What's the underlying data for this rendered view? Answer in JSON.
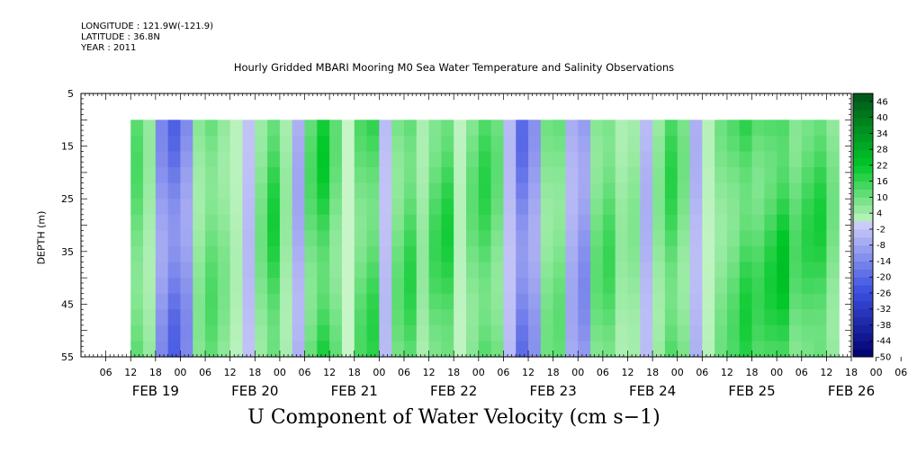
{
  "header": {
    "longitude": "LONGITUDE : 121.9W(-121.9)",
    "latitude": "LATITUDE : 36.8N",
    "year": "YEAR : 2011"
  },
  "chart_data": {
    "type": "heatmap",
    "title": "Hourly Gridded MBARI Mooring M0 Sea Water Temperature and Salinity Observations",
    "variable_label": "U Component of Water Velocity (cm s−1)",
    "ylabel": "DEPTH (m)",
    "ylim": [
      5,
      55
    ],
    "y_inverted": true,
    "y_ticks": [
      5,
      15,
      25,
      35,
      45,
      55
    ],
    "data_depth_range": [
      10,
      55
    ],
    "x_hour_ticks": [
      "06",
      "12",
      "18",
      "00",
      "06",
      "12",
      "18",
      "00",
      "06",
      "12",
      "18",
      "00",
      "06",
      "12",
      "18",
      "00",
      "06",
      "12",
      "18",
      "00",
      "06",
      "12",
      "18",
      "00",
      "06",
      "12",
      "18",
      "00",
      "06",
      "12",
      "18",
      "00",
      "06",
      "12",
      "18",
      "00"
    ],
    "x_date_labels": [
      "FEB 19",
      "FEB 20",
      "FEB 21",
      "FEB 22",
      "FEB 23",
      "FEB 24",
      "FEB 25",
      "FEB 26"
    ],
    "time_range_hours": [
      -18,
      168
    ],
    "data_time_range_hours": [
      -6,
      162
    ],
    "colorbar": {
      "min": -50,
      "max": 49,
      "step": 3,
      "tick_labels": [
        "46",
        "40",
        "34",
        "28",
        "22",
        "16",
        "10",
        "4",
        "-2",
        "-8",
        "-14",
        "-20",
        "-26",
        "-32",
        "-38",
        "-44",
        "-50"
      ],
      "negative_color": "#3a48d8",
      "positive_color": "#0a8a1e"
    },
    "column_values": [
      {
        "t": -6,
        "v": 14
      },
      {
        "t": -3,
        "v": 6
      },
      {
        "t": 0,
        "v": -14
      },
      {
        "t": 3,
        "v": -22
      },
      {
        "t": 6,
        "v": -14
      },
      {
        "t": 9,
        "v": 8
      },
      {
        "t": 12,
        "v": 14
      },
      {
        "t": 15,
        "v": 9
      },
      {
        "t": 18,
        "v": 3
      },
      {
        "t": 21,
        "v": -4
      },
      {
        "t": 24,
        "v": 10
      },
      {
        "t": 27,
        "v": 20
      },
      {
        "t": 30,
        "v": 6
      },
      {
        "t": 33,
        "v": -8
      },
      {
        "t": 36,
        "v": 14
      },
      {
        "t": 39,
        "v": 22
      },
      {
        "t": 42,
        "v": 12
      },
      {
        "t": 45,
        "v": 0
      },
      {
        "t": 48,
        "v": 14
      },
      {
        "t": 51,
        "v": 18
      },
      {
        "t": 54,
        "v": -4
      },
      {
        "t": 57,
        "v": 12
      },
      {
        "t": 60,
        "v": 18
      },
      {
        "t": 63,
        "v": 6
      },
      {
        "t": 66,
        "v": 16
      },
      {
        "t": 69,
        "v": 20
      },
      {
        "t": 72,
        "v": 2
      },
      {
        "t": 75,
        "v": 12
      },
      {
        "t": 78,
        "v": 18
      },
      {
        "t": 81,
        "v": 12
      },
      {
        "t": 84,
        "v": -4
      },
      {
        "t": 87,
        "v": -20
      },
      {
        "t": 90,
        "v": -12
      },
      {
        "t": 93,
        "v": 10
      },
      {
        "t": 96,
        "v": 12
      },
      {
        "t": 99,
        "v": -8
      },
      {
        "t": 102,
        "v": -14
      },
      {
        "t": 105,
        "v": 12
      },
      {
        "t": 108,
        "v": 16
      },
      {
        "t": 111,
        "v": 6
      },
      {
        "t": 114,
        "v": 8
      },
      {
        "t": 117,
        "v": -6
      },
      {
        "t": 120,
        "v": 8
      },
      {
        "t": 123,
        "v": 18
      },
      {
        "t": 126,
        "v": 10
      },
      {
        "t": 129,
        "v": -6
      },
      {
        "t": 132,
        "v": 2
      },
      {
        "t": 135,
        "v": 10
      },
      {
        "t": 138,
        "v": 14
      },
      {
        "t": 141,
        "v": 20
      },
      {
        "t": 144,
        "v": 16
      },
      {
        "t": 147,
        "v": 20
      },
      {
        "t": 150,
        "v": 24
      },
      {
        "t": 153,
        "v": 14
      },
      {
        "t": 156,
        "v": 18
      },
      {
        "t": 159,
        "v": 20
      },
      {
        "t": 162,
        "v": 10
      }
    ]
  }
}
